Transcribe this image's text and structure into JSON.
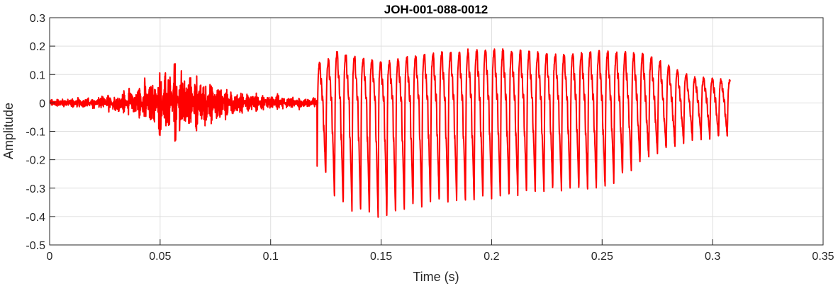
{
  "chart_data": {
    "type": "line",
    "title": "JOH-001-088-0012",
    "xlabel": "Time (s)",
    "ylabel": "Amplitude",
    "xlim": [
      0,
      0.35
    ],
    "ylim": [
      -0.5,
      0.3
    ],
    "xticks": [
      0,
      0.05,
      0.1,
      0.15,
      0.2,
      0.25,
      0.3,
      0.35
    ],
    "xtick_labels": [
      "0",
      "0.05",
      "0.1",
      "0.15",
      "0.2",
      "0.25",
      "0.3",
      "0.35"
    ],
    "yticks": [
      -0.5,
      -0.4,
      -0.3,
      -0.2,
      -0.1,
      0,
      0.1,
      0.2,
      0.3
    ],
    "ytick_labels": [
      "-0.5",
      "-0.4",
      "-0.3",
      "-0.2",
      "-0.1",
      "0",
      "0.1",
      "0.2",
      "0.3"
    ],
    "grid": true,
    "line_color": "#ff0000",
    "signal_end_time": 0.308,
    "segments": [
      {
        "t_start": 0.0,
        "t_end": 0.121,
        "kind": "noise",
        "envelope_t": [
          0,
          0.02,
          0.035,
          0.045,
          0.055,
          0.065,
          0.075,
          0.085,
          0.095,
          0.11,
          0.121
        ],
        "envelope_amp": [
          0.012,
          0.02,
          0.05,
          0.1,
          0.16,
          0.14,
          0.09,
          0.05,
          0.035,
          0.025,
          0.02
        ]
      },
      {
        "t_start": 0.121,
        "t_end": 0.308,
        "kind": "periodic",
        "period": 0.00395,
        "peak_t": [
          0.125,
          0.13,
          0.15,
          0.17,
          0.2,
          0.23,
          0.25,
          0.27,
          0.29,
          0.305
        ],
        "peak_max": [
          0.14,
          0.18,
          0.14,
          0.17,
          0.19,
          0.17,
          0.18,
          0.17,
          0.09,
          0.08
        ],
        "peak_min": [
          -0.26,
          -0.36,
          -0.41,
          -0.36,
          -0.34,
          -0.31,
          -0.31,
          -0.2,
          -0.13,
          -0.12
        ]
      }
    ]
  }
}
